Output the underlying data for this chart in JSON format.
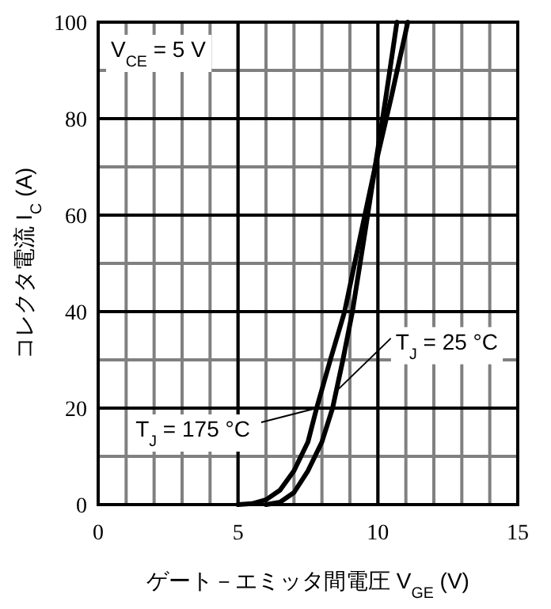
{
  "chart_data": {
    "type": "line",
    "xlabel": "ゲート－エミッタ間電圧 V$_{GE}$ (V)",
    "ylabel": "コレクタ電流 I$_{C}$ (A)",
    "xlim": [
      0,
      15
    ],
    "ylim": [
      0,
      100
    ],
    "xticks": [
      0,
      5,
      10,
      15
    ],
    "yticks": [
      0,
      20,
      40,
      60,
      80,
      100
    ],
    "grid": true,
    "marker": "none",
    "line_style": "solid",
    "series": [
      {
        "color": "#000000",
        "x": [
          5,
          5.5,
          6,
          6.5,
          7,
          7.5,
          7.81,
          8.3,
          8.81,
          9.35,
          9.9,
          10.5,
          11.07
        ],
        "values": [
          0,
          0.2,
          1,
          3,
          7,
          13,
          20,
          30,
          40,
          55,
          70,
          85,
          100
        ]
      },
      {
        "color": "#000000",
        "x": [
          6,
          6.5,
          7,
          7.5,
          8,
          8.38,
          8.75,
          9.09,
          9.5,
          9.9,
          10.3,
          10.68
        ],
        "values": [
          0,
          0.5,
          2.5,
          7,
          13,
          20,
          30,
          40,
          55,
          70,
          85,
          100
        ]
      }
    ],
    "annotations": [
      "V$_{CE}$ = 5 V",
      {
        "text": "T$_{J}$ = 175 °C",
        "x": 7.81,
        "y": 20
      },
      {
        "text": "T$_{J}$ = 25 °C",
        "x": 8.6,
        "y": 24
      }
    ]
  }
}
